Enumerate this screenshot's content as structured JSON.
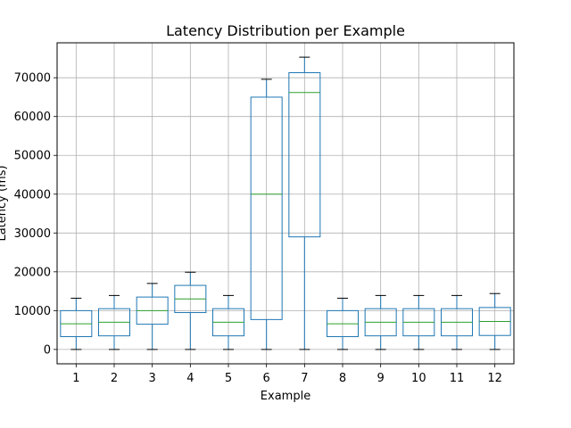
{
  "chart_data": {
    "type": "box",
    "title": "Latency Distribution per Example",
    "xlabel": "Example",
    "ylabel": "Latency (ms)",
    "categories": [
      "1",
      "2",
      "3",
      "4",
      "5",
      "6",
      "7",
      "8",
      "9",
      "10",
      "11",
      "12"
    ],
    "boxes": [
      {
        "whisker_low": 0,
        "q1": 3300,
        "median": 6600,
        "q3": 10000,
        "whisker_high": 13200
      },
      {
        "whisker_low": 0,
        "q1": 3500,
        "median": 7000,
        "q3": 10500,
        "whisker_high": 13900
      },
      {
        "whisker_low": 0,
        "q1": 6500,
        "median": 10000,
        "q3": 13500,
        "whisker_high": 17000
      },
      {
        "whisker_low": 0,
        "q1": 9500,
        "median": 13000,
        "q3": 16500,
        "whisker_high": 19900
      },
      {
        "whisker_low": 0,
        "q1": 3500,
        "median": 7000,
        "q3": 10500,
        "whisker_high": 13900
      },
      {
        "whisker_low": 0,
        "q1": 7700,
        "median": 40000,
        "q3": 65000,
        "whisker_high": 69600
      },
      {
        "whisker_low": 0,
        "q1": 29000,
        "median": 66200,
        "q3": 71300,
        "whisker_high": 75300
      },
      {
        "whisker_low": 0,
        "q1": 3300,
        "median": 6600,
        "q3": 10000,
        "whisker_high": 13200
      },
      {
        "whisker_low": 0,
        "q1": 3500,
        "median": 7000,
        "q3": 10500,
        "whisker_high": 13900
      },
      {
        "whisker_low": 0,
        "q1": 3500,
        "median": 7000,
        "q3": 10500,
        "whisker_high": 13900
      },
      {
        "whisker_low": 0,
        "q1": 3500,
        "median": 7000,
        "q3": 10500,
        "whisker_high": 13900
      },
      {
        "whisker_low": 0,
        "q1": 3600,
        "median": 7200,
        "q3": 10800,
        "whisker_high": 14400
      }
    ],
    "yticks": [
      0,
      10000,
      20000,
      30000,
      40000,
      50000,
      60000,
      70000
    ],
    "ylim": [
      -3700,
      79000
    ],
    "grid": true,
    "colors": {
      "box": "#1f77b4",
      "median": "#2ca02c",
      "whisker": "#1f77b4",
      "cap": "#000000",
      "grid": "#b0b0b0"
    }
  }
}
